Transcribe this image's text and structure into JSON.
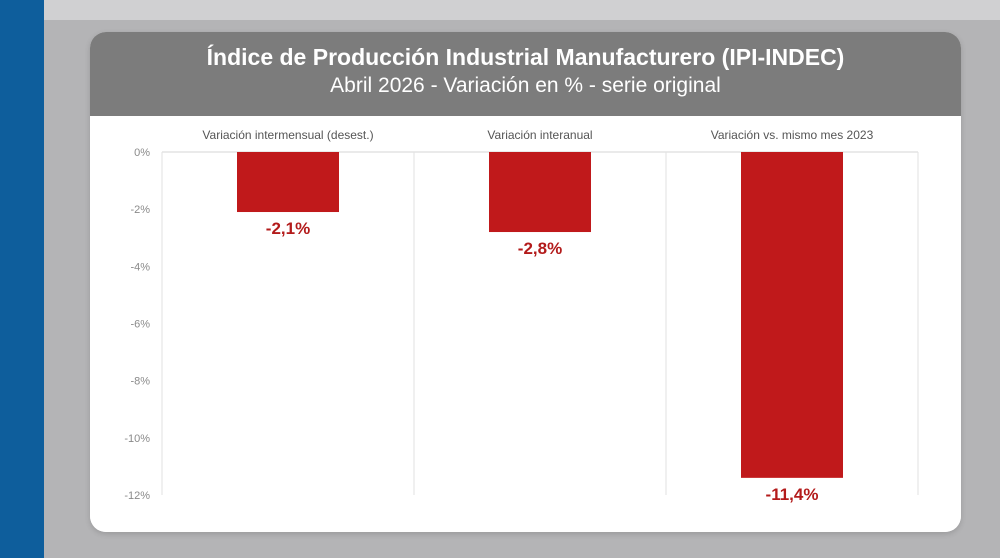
{
  "colors": {
    "background": "#b4b4b6",
    "accent_band": "#0e5e9c",
    "header": "#7c7c7c",
    "bar": "#c0191b",
    "data_label": "#b31b1b"
  },
  "header": {
    "title": "Índice de Producción Industrial Manufacturero (IPI-INDEC)",
    "subtitle": "Abril 2026 - Variación en % - serie original"
  },
  "chart_data": {
    "type": "bar",
    "title": "Índice de Producción Industrial Manufacturero (IPI-INDEC)",
    "subtitle": "Abril 2026 - Variación en % - serie original",
    "categories": [
      "Variación intermensual (desest.)",
      "Variación interanual",
      "Variación vs. mismo mes 2023"
    ],
    "values": [
      -2.1,
      -2.8,
      -11.4
    ],
    "data_labels": [
      "-2,1%",
      "-2,8%",
      "-11,4%"
    ],
    "yticks": [
      0,
      -2,
      -4,
      -6,
      -8,
      -10,
      -12
    ],
    "ytick_labels": [
      "0%",
      "-2%",
      "-4%",
      "-6%",
      "-8%",
      "-10%",
      "-12%"
    ],
    "ylim": [
      -12,
      0
    ],
    "xlabel": "",
    "ylabel": "",
    "grid": false,
    "legend": "none",
    "category_labels_position": "top"
  }
}
